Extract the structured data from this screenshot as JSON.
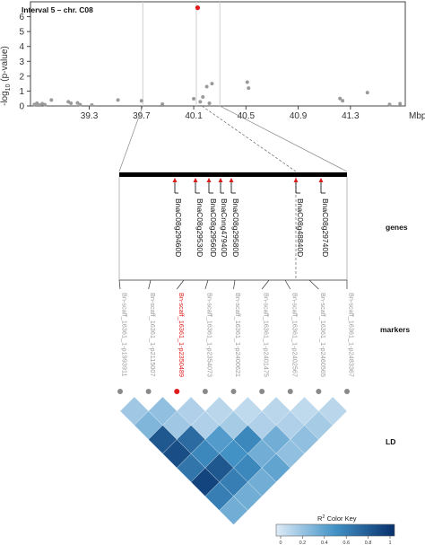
{
  "chart_data": {
    "type": "scatter",
    "title": "Interval 5 – chr. C08",
    "xlabel": "Mbp",
    "ylabel_prefix": "-log",
    "ylabel_sub": "10",
    "ylabel_suffix": " (p-value)",
    "xlim": [
      38.85,
      41.72
    ],
    "ylim": [
      0,
      7
    ],
    "xticks": [
      39.3,
      39.7,
      40.1,
      40.5,
      40.9,
      41.3
    ],
    "xtick_labels": [
      "39.3",
      "39.7",
      "40.1",
      "40.5",
      "40.9",
      "41.3"
    ],
    "yticks": [
      0,
      1,
      2,
      3,
      4,
      5,
      6
    ],
    "ytick_labels": [
      "0",
      "1",
      "2",
      "3",
      "4",
      "5",
      "6"
    ],
    "point_color": "#9a9a9a",
    "highlight_color": "#e01b1b",
    "points": [
      {
        "x": 38.88,
        "y": 0.1
      },
      {
        "x": 38.9,
        "y": 0.18
      },
      {
        "x": 38.92,
        "y": 0.05
      },
      {
        "x": 38.94,
        "y": 0.15
      },
      {
        "x": 38.96,
        "y": 0.08
      },
      {
        "x": 39.01,
        "y": 0.4
      },
      {
        "x": 39.14,
        "y": 0.28
      },
      {
        "x": 39.16,
        "y": 0.18
      },
      {
        "x": 39.21,
        "y": 0.2
      },
      {
        "x": 39.23,
        "y": 0.08
      },
      {
        "x": 39.32,
        "y": 0.06
      },
      {
        "x": 39.52,
        "y": 0.4
      },
      {
        "x": 39.7,
        "y": 0.35
      },
      {
        "x": 39.86,
        "y": 0.12
      },
      {
        "x": 40.1,
        "y": 0.48
      },
      {
        "x": 40.15,
        "y": 0.28
      },
      {
        "x": 40.17,
        "y": 0.6
      },
      {
        "x": 40.22,
        "y": 0.18
      },
      {
        "x": 40.2,
        "y": 1.3
      },
      {
        "x": 40.24,
        "y": 1.5
      },
      {
        "x": 40.51,
        "y": 1.6
      },
      {
        "x": 40.52,
        "y": 1.2
      },
      {
        "x": 41.22,
        "y": 0.5
      },
      {
        "x": 41.24,
        "y": 0.35
      },
      {
        "x": 41.43,
        "y": 0.9
      },
      {
        "x": 41.6,
        "y": 0.1
      },
      {
        "x": 41.68,
        "y": 0.15
      }
    ],
    "highlight_point": {
      "x": 40.13,
      "y": 6.6
    },
    "interval_lines_x": [
      39.71,
      40.12,
      40.3
    ],
    "genes": [
      "BnaC08g29460D",
      "BnaC08g29530D",
      "BnaC08g29560D",
      "BnaCnng47940D",
      "BnaC08g29580D",
      "BnaC08g48840D",
      "BnaC08g29740D"
    ],
    "markers": [
      {
        "label": "Bn-scaff_16361_1-p1993911",
        "highlight": false
      },
      {
        "label": "Bn-scaff_16361_1-p2115007",
        "highlight": false
      },
      {
        "label": "Bn-scaff_16361_1-p2350489",
        "highlight": true
      },
      {
        "label": "Bn-scaff_16361_1-p2354073",
        "highlight": false
      },
      {
        "label": "Bn-scaff_16361_1-p2400621",
        "highlight": false
      },
      {
        "label": "Bn-scaff_16361_1-p2401475",
        "highlight": false
      },
      {
        "label": "Bn-scaff_16361_1-p2402567",
        "highlight": false
      },
      {
        "label": "Bn-scaff_16361_1-p2460565",
        "highlight": false
      },
      {
        "label": "Bn-scaff_16361_1-p2483367",
        "highlight": false
      }
    ],
    "ld_matrix": [
      [
        0.2,
        0.25,
        0.15,
        0.12,
        0.1,
        0.12,
        0.1,
        0.12
      ],
      [
        0.3,
        0.2,
        0.15,
        0.18,
        0.15,
        0.15,
        0.18
      ],
      [
        0.8,
        0.7,
        0.45,
        0.55,
        0.35,
        0.25
      ],
      [
        0.85,
        0.55,
        0.5,
        0.35,
        0.25
      ],
      [
        0.65,
        0.8,
        0.55,
        0.4
      ],
      [
        0.9,
        0.6,
        0.35
      ],
      [
        0.6,
        0.35
      ],
      [
        0.35
      ]
    ],
    "color_key": {
      "title": "R",
      "title_sup": "2",
      "title_suffix": " Color Key",
      "ticks": [
        "0",
        "0.2",
        "0.4",
        "0.6",
        "0.8",
        "1"
      ],
      "low_color": "#ffffff",
      "high_color": "#08306b"
    }
  },
  "labels": {
    "genes": "genes",
    "markers": "markers",
    "ld": "LD"
  }
}
